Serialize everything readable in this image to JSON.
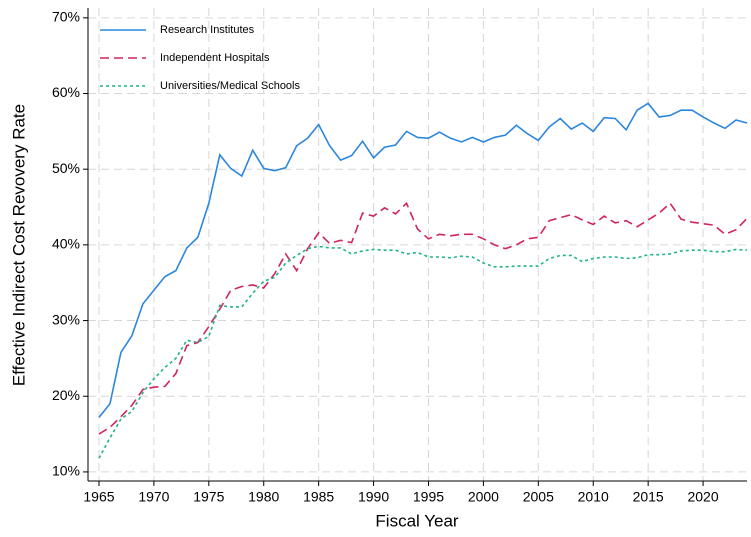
{
  "chart_data": {
    "type": "line",
    "xlabel": "Fiscal Year",
    "ylabel": "Effective Indirect Cost Revovery Rate",
    "x": [
      1965,
      1966,
      1967,
      1968,
      1969,
      1970,
      1971,
      1972,
      1973,
      1974,
      1975,
      1976,
      1977,
      1978,
      1979,
      1980,
      1981,
      1982,
      1983,
      1984,
      1985,
      1986,
      1987,
      1988,
      1989,
      1990,
      1991,
      1992,
      1993,
      1994,
      1995,
      1996,
      1997,
      1998,
      1999,
      2000,
      2001,
      2002,
      2003,
      2004,
      2005,
      2006,
      2007,
      2008,
      2009,
      2010,
      2011,
      2012,
      2013,
      2014,
      2015,
      2016,
      2017,
      2018,
      2019,
      2020,
      2021,
      2022,
      2023,
      2024
    ],
    "series": [
      {
        "name": "Research Institutes",
        "color": "#2b87de",
        "line_style": "solid",
        "values": [
          17.2,
          19,
          25.8,
          28,
          32.2,
          34,
          35.8,
          36.6,
          39.6,
          41,
          45.5,
          51.9,
          50.1,
          49.1,
          52.5,
          50.1,
          49.8,
          50.2,
          53.1,
          54.1,
          55.9,
          53.1,
          51.2,
          51.8,
          53.7,
          51.5,
          52.9,
          53.2,
          55,
          54.2,
          54.1,
          54.9,
          54.1,
          53.6,
          54.2,
          53.6,
          54.2,
          54.5,
          55.8,
          54.7,
          53.8,
          55.6,
          56.7,
          55.3,
          56.1,
          55,
          56.8,
          56.7,
          55.2,
          57.8,
          58.7,
          56.9,
          57.1,
          57.8,
          57.8,
          56.9,
          56.1,
          55.4,
          56.5,
          56.1
        ]
      },
      {
        "name": "Independent Hospitals",
        "color": "#d0245f",
        "line_style": "dashed",
        "values": [
          15,
          15.9,
          17.3,
          18.8,
          20.9,
          21.2,
          21.3,
          23,
          26.7,
          27.1,
          29.2,
          31.5,
          34,
          34.5,
          34.7,
          34.3,
          36.2,
          38.8,
          36.6,
          39.5,
          41.6,
          40.2,
          40.6,
          40.3,
          44.2,
          43.8,
          44.9,
          44.1,
          45.5,
          42.1,
          40.8,
          41.4,
          41.2,
          41.4,
          41.4,
          40.8,
          40,
          39.5,
          40,
          40.8,
          41,
          43.2,
          43.6,
          44,
          43.3,
          42.7,
          43.8,
          42.9,
          43.2,
          42.4,
          43.3,
          44.2,
          45.5,
          43.4,
          43,
          42.8,
          42.6,
          41.4,
          42,
          43.5
        ]
      },
      {
        "name": "Universities/Medical Schools",
        "color": "#1fb48c",
        "line_style": "dotted",
        "values": [
          11.8,
          14.5,
          17,
          18,
          20.5,
          22.3,
          23.8,
          25,
          27.4,
          27.1,
          27.9,
          32,
          31.8,
          31.8,
          33.6,
          35.2,
          35.7,
          37.6,
          38.6,
          39.5,
          39.8,
          39.6,
          39.6,
          38.8,
          39.2,
          39.4,
          39.3,
          39.3,
          38.8,
          39,
          38.4,
          38.4,
          38.3,
          38.5,
          38.4,
          37.6,
          37.1,
          37.1,
          37.2,
          37.2,
          37.2,
          38.2,
          38.6,
          38.6,
          37.8,
          38.2,
          38.4,
          38.4,
          38.2,
          38.3,
          38.7,
          38.7,
          38.8,
          39.2,
          39.3,
          39.3,
          39.1,
          39.1,
          39.4,
          39.3
        ]
      }
    ],
    "xlim": [
      1964,
      2024
    ],
    "xticks": [
      1965,
      1970,
      1975,
      1980,
      1985,
      1990,
      1995,
      2000,
      2005,
      2010,
      2015,
      2020
    ],
    "ylim": [
      8.8,
      71.3
    ],
    "yticks": [
      {
        "value": 10,
        "label": "10%"
      },
      {
        "value": 20,
        "label": "20%"
      },
      {
        "value": 30,
        "label": "30%"
      },
      {
        "value": 40,
        "label": "40%"
      },
      {
        "value": 50,
        "label": "50%"
      },
      {
        "value": 60,
        "label": "60%"
      },
      {
        "value": 70,
        "label": "70%"
      }
    ],
    "grid": true,
    "legend": "upper-left"
  }
}
